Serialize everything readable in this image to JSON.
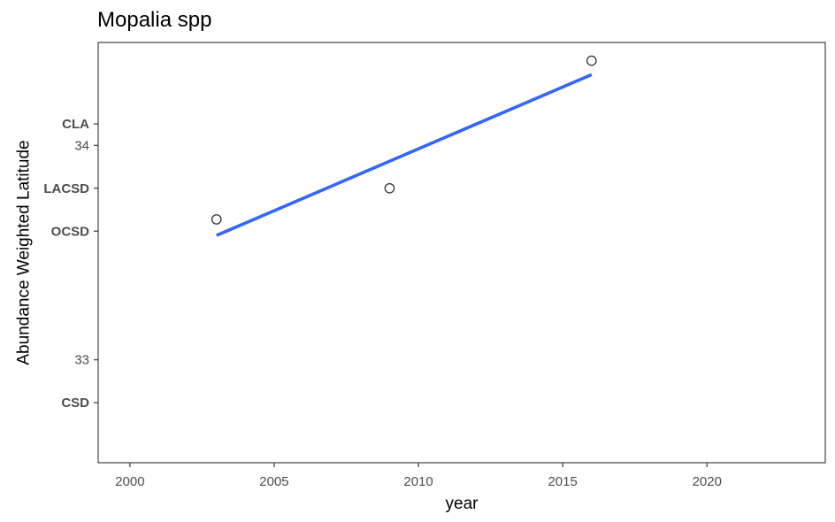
{
  "chart_data": {
    "type": "scatter",
    "title": "Mopalia spp",
    "xlabel": "year",
    "ylabel": "Abundance Weighted Latitude",
    "xlim": [
      1998.9,
      2024.1
    ],
    "ylim": [
      32.52,
      34.48
    ],
    "x_ticks": [
      2000,
      2005,
      2010,
      2015,
      2020
    ],
    "y_ticks": [
      33,
      34
    ],
    "y_reference_labels": [
      {
        "label": "CLA",
        "value": 34.1
      },
      {
        "label": "LACSD",
        "value": 33.8
      },
      {
        "label": "OCSD",
        "value": 33.6
      },
      {
        "label": "CSD",
        "value": 32.8
      }
    ],
    "points": [
      {
        "x": 2003,
        "y": 33.655
      },
      {
        "x": 2009,
        "y": 33.8
      },
      {
        "x": 2016,
        "y": 34.395
      }
    ],
    "trend_line": {
      "x": [
        2003,
        2016
      ],
      "y": [
        33.58,
        34.33
      ],
      "color": "#3366FF"
    },
    "grid": false,
    "legend": "none"
  }
}
